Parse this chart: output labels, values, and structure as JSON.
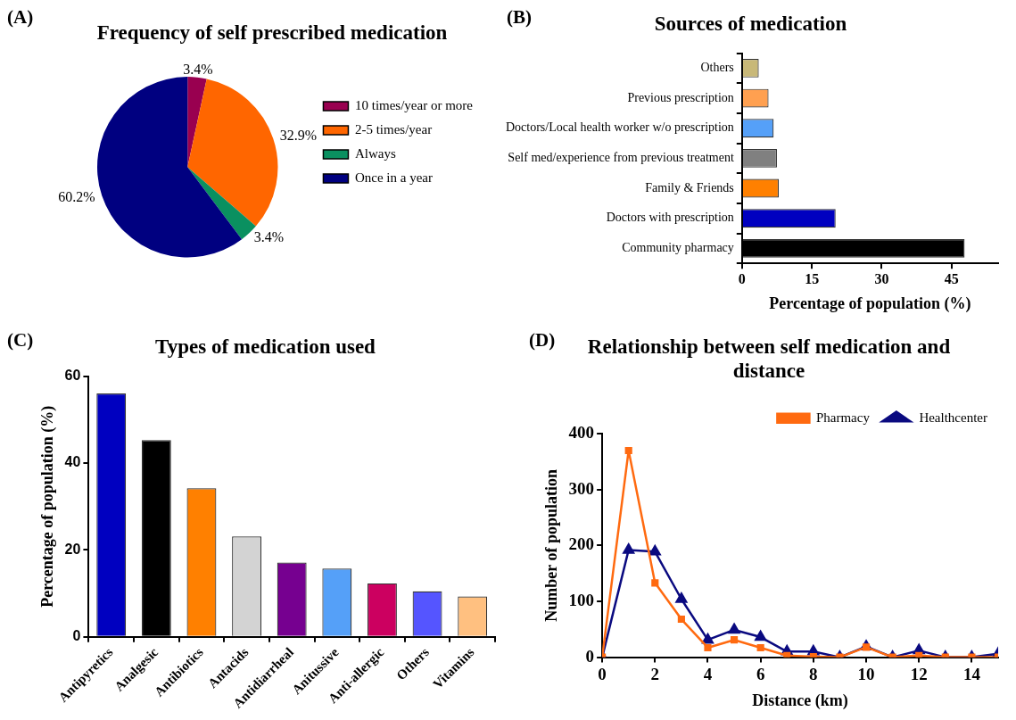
{
  "chart_data": [
    {
      "type": "pie",
      "title": "Frequency of self prescribed medication",
      "annotations": [
        "(A)"
      ],
      "categories": [
        "10 times/year or more",
        "2-5 times/year",
        "Always",
        "Once in a year"
      ],
      "values": [
        3.4,
        32.9,
        3.4,
        60.2
      ],
      "colors": [
        "#990050",
        "#ff6600",
        "#0a9060",
        "#000080"
      ],
      "value_labels": [
        "3.4%",
        "32.9%",
        "3.4%",
        "60.2%"
      ],
      "legend": "right"
    },
    {
      "type": "bar",
      "orientation": "horizontal",
      "title": "Sources of medication",
      "annotations": [
        "(B)"
      ],
      "xlabel": "Percentage of population (%)",
      "categories": [
        "Others",
        "Previous prescription",
        "Doctors/Local health worker w/o prescription",
        "Self med/experience from previous treatment",
        "Family & Friends",
        "Doctors with prescription",
        "Community pharmacy"
      ],
      "values": [
        3.6,
        5.7,
        6.8,
        7.5,
        7.9,
        20.1,
        47.8
      ],
      "colors": [
        "#c8b878",
        "#ffa050",
        "#55a0f8",
        "#808080",
        "#ff8000",
        "#0000c0",
        "#000000"
      ],
      "xlim": [
        0,
        55
      ],
      "xticks": [
        0,
        15,
        30,
        45
      ],
      "grid": false,
      "legend": false
    },
    {
      "type": "bar",
      "title": "Types of medication used",
      "annotations": [
        "(C)"
      ],
      "ylabel": "Percentage of population (%)",
      "categories": [
        "Antipyretics",
        "Analgesic",
        "Antibiotics",
        "Antacids",
        "Antidiarrheal",
        "Anitussive",
        "Anti-allergic",
        "Others",
        "Vitamins"
      ],
      "values": [
        56.0,
        45.3,
        34.2,
        23.1,
        17.1,
        15.7,
        12.3,
        10.5,
        9.3
      ],
      "colors": [
        "#0000c0",
        "#000000",
        "#ff8000",
        "#d3d3d3",
        "#760090",
        "#55a0f8",
        "#cc0060",
        "#5555ff",
        "#ffc080"
      ],
      "ylim": [
        0,
        60
      ],
      "yticks": [
        0,
        20,
        40,
        60
      ],
      "grid": false,
      "legend": false
    },
    {
      "type": "line",
      "title": "Relationship between self medication and distance",
      "annotations": [
        "(D)"
      ],
      "xlabel": "Distance (km)",
      "ylabel": "Number of population",
      "x": [
        0,
        1,
        2,
        3,
        4,
        5,
        6,
        7,
        8,
        9,
        10,
        11,
        12,
        13,
        14,
        15
      ],
      "series": [
        {
          "name": "Pharmacy",
          "color": "#ff6a10",
          "marker": "square",
          "values": [
            0,
            370,
            133,
            68,
            17,
            31,
            17,
            3,
            1,
            0,
            18,
            0,
            3,
            0,
            0,
            0
          ]
        },
        {
          "name": "Healthcenter",
          "color": "#0a0a80",
          "marker": "triangle",
          "values": [
            0,
            192,
            189,
            104,
            31,
            49,
            36,
            10,
            10,
            0,
            19,
            0,
            12,
            0,
            0,
            6
          ]
        }
      ],
      "xlim": [
        0,
        15
      ],
      "xticks": [
        0,
        2,
        4,
        6,
        8,
        10,
        12,
        14
      ],
      "ylim": [
        0,
        400
      ],
      "yticks": [
        0,
        100,
        200,
        300,
        400
      ],
      "grid": false,
      "legend": "top right",
      "line_style": "solid"
    }
  ]
}
